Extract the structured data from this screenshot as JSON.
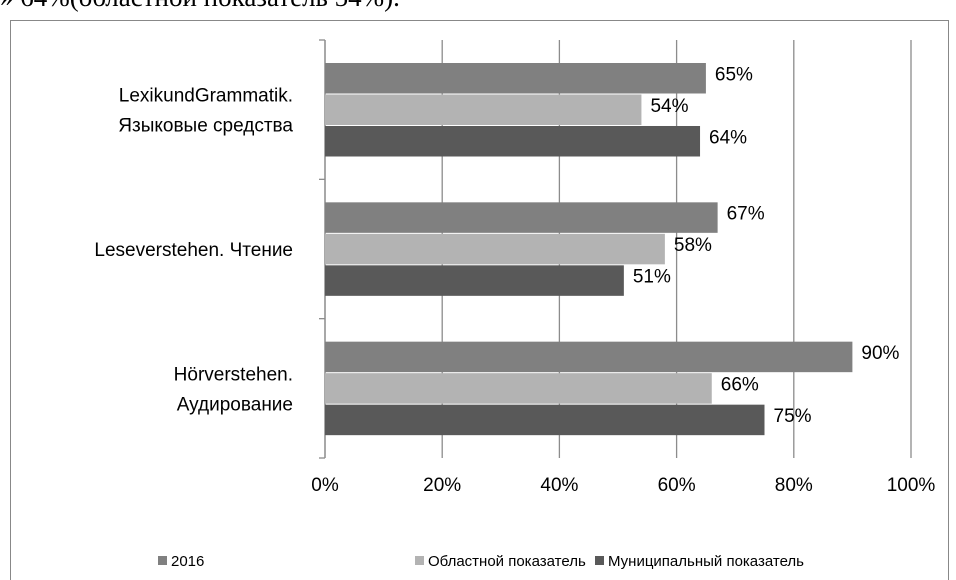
{
  "header_text": "» 64%(областной показатель 54%).",
  "chart_data": {
    "type": "bar",
    "orientation": "horizontal",
    "categories": [
      [
        "LexikundGrammatik.",
        "Языковые средства"
      ],
      [
        "Leseverstehen.  Чтение"
      ],
      [
        "Hörverstehen.",
        "Аудирование"
      ]
    ],
    "series": [
      {
        "name": "2016",
        "color": "#808080",
        "values": [
          65,
          67,
          90
        ],
        "value_labels": [
          "65%",
          "67%",
          "90%"
        ]
      },
      {
        "name": "Областной показатель",
        "color": "#b3b3b3",
        "values": [
          54,
          58,
          66
        ],
        "value_labels": [
          "54%",
          "58%",
          "66%"
        ]
      },
      {
        "name": "Муниципальный показатель",
        "color": "#595959",
        "values": [
          64,
          51,
          75
        ],
        "value_labels": [
          "64%",
          "51%",
          "75%"
        ]
      }
    ],
    "xlim": [
      0,
      100
    ],
    "xticks": [
      {
        "value": 0,
        "label": "0%"
      },
      {
        "value": 20,
        "label": "20%"
      },
      {
        "value": 40,
        "label": "40%"
      },
      {
        "value": 60,
        "label": "60%"
      },
      {
        "value": 80,
        "label": "80%"
      },
      {
        "value": 100,
        "label": "100%"
      }
    ],
    "grid": true,
    "legend": "bottom"
  }
}
